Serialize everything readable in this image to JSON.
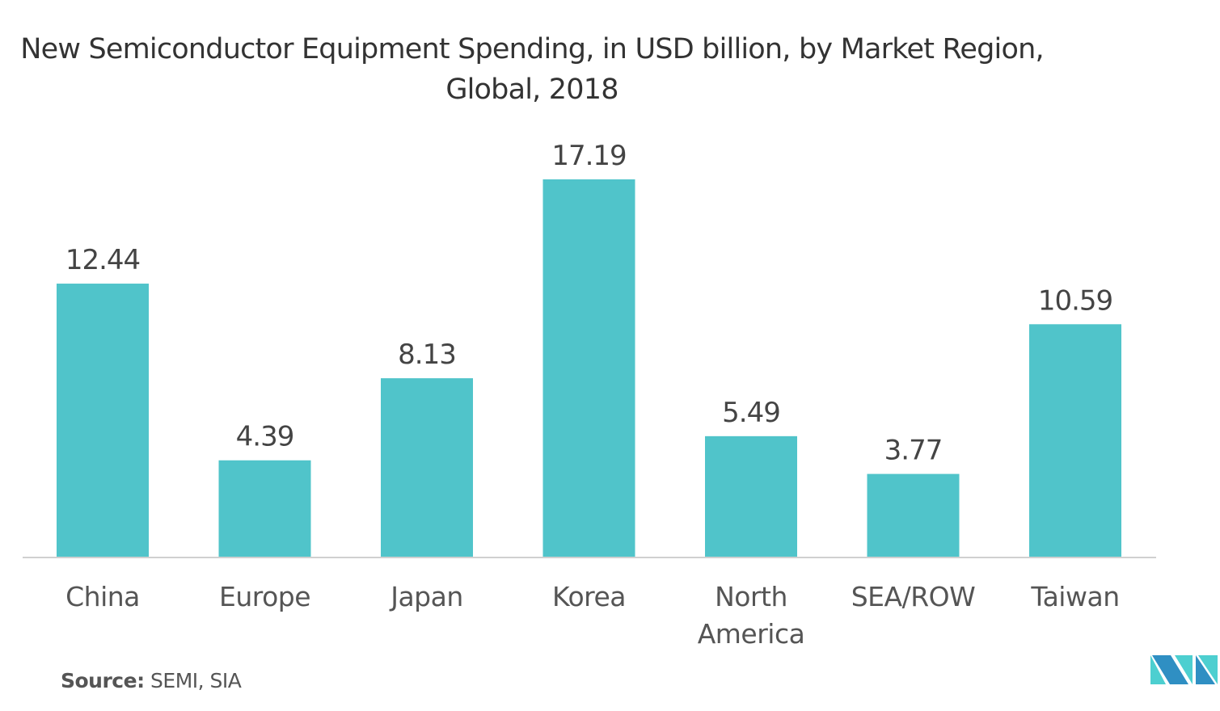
{
  "chart_data": {
    "type": "bar",
    "title": "New Semiconductor Equipment Spending, in USD billion, by Market Region, Global, 2018",
    "categories": [
      "China",
      "Europe",
      "Japan",
      "Korea",
      "North America",
      "SEA/ROW",
      "Taiwan"
    ],
    "values": [
      12.44,
      4.39,
      8.13,
      17.19,
      5.49,
      3.77,
      10.59
    ],
    "data_labels": [
      "12.44",
      "4.39",
      "8.13",
      "17.19",
      "5.49",
      "3.77",
      "10.59"
    ],
    "xlabel": "",
    "ylabel": "",
    "ylim": [
      0,
      17.19
    ],
    "grid": false,
    "bar_color": "#50c4ca"
  },
  "source": {
    "label": "Source:",
    "text": "SEMI, SIA"
  },
  "logo": {
    "text": "MI",
    "colors": [
      "#2f8fc3",
      "#4dcfd0"
    ]
  }
}
